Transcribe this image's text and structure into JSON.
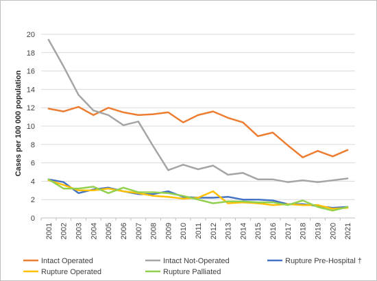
{
  "chart_data": {
    "type": "line",
    "title": "",
    "xlabel": "",
    "ylabel": "Cases per 100 000 population",
    "ylim": [
      0,
      20
    ],
    "yticks": [
      0,
      2,
      4,
      6,
      8,
      10,
      12,
      14,
      16,
      18,
      20
    ],
    "grid": "horizontal",
    "legend_position": "bottom",
    "x": [
      "2001",
      "2002",
      "2003",
      "2004",
      "2005",
      "2006",
      "2007",
      "2008",
      "2009",
      "2010",
      "2011",
      "2012",
      "2013",
      "2014",
      "2015",
      "2016",
      "2017",
      "2018",
      "2019",
      "2020",
      "2021"
    ],
    "series": [
      {
        "name": "Intact Operated",
        "color": "#ED7D31",
        "values": [
          11.9,
          11.6,
          12.1,
          11.2,
          12.0,
          11.5,
          11.2,
          11.3,
          11.5,
          10.4,
          11.2,
          11.6,
          10.9,
          10.4,
          8.9,
          9.3,
          7.9,
          6.6,
          7.3,
          6.7,
          7.4
        ]
      },
      {
        "name": "Intact Not-Operated",
        "color": "#A5A5A5",
        "values": [
          19.4,
          16.5,
          13.4,
          11.7,
          11.2,
          10.1,
          10.5,
          7.8,
          5.2,
          5.8,
          5.3,
          5.7,
          4.7,
          4.9,
          4.2,
          4.2,
          3.9,
          4.1,
          3.9,
          4.1,
          4.3
        ]
      },
      {
        "name": "Rupture Pre-Hospital †",
        "color": "#4472C4",
        "values": [
          4.2,
          3.9,
          2.7,
          3.1,
          3.3,
          2.9,
          2.6,
          2.6,
          2.9,
          2.3,
          2.2,
          2.2,
          2.3,
          2.0,
          2.0,
          1.9,
          1.5,
          1.5,
          1.3,
          1.1,
          1.2
        ]
      },
      {
        "name": "Rupture Operated",
        "color": "#FFC000",
        "values": [
          4.1,
          3.6,
          3.0,
          3.0,
          3.2,
          2.9,
          2.7,
          2.4,
          2.3,
          2.1,
          2.2,
          2.9,
          1.6,
          1.7,
          1.6,
          1.4,
          1.5,
          1.4,
          1.4,
          1.0,
          1.1
        ]
      },
      {
        "name": "Rupture Palliated",
        "color": "#92D050",
        "values": [
          4.2,
          3.2,
          3.2,
          3.4,
          2.7,
          3.3,
          2.8,
          2.8,
          2.7,
          2.4,
          2.0,
          1.6,
          1.8,
          1.8,
          1.7,
          1.7,
          1.4,
          1.9,
          1.2,
          0.8,
          1.2
        ]
      }
    ]
  }
}
